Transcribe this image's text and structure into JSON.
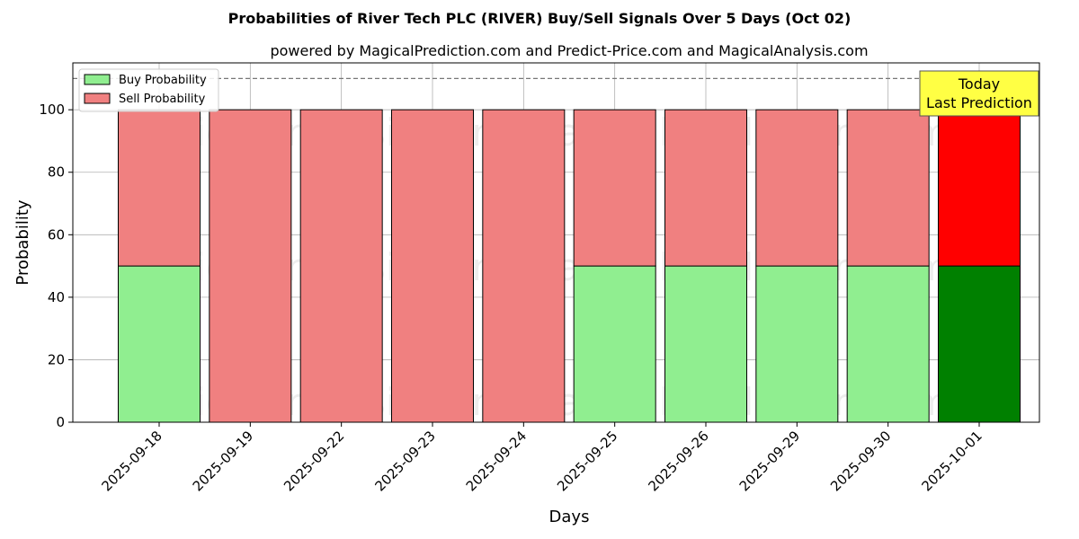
{
  "chart_data": {
    "type": "bar",
    "stacked": true,
    "title": "Probabilities of River Tech PLC (RIVER) Buy/Sell Signals Over 5 Days (Oct 02)",
    "subtitle": "powered by MagicalPrediction.com and Predict-Price.com and MagicalAnalysis.com",
    "xlabel": "Days",
    "ylabel": "Probability",
    "ylim": [
      0,
      115
    ],
    "yticks": [
      0,
      20,
      40,
      60,
      80,
      100
    ],
    "grid": true,
    "legend_position": "top-left",
    "reference_line": 110,
    "categories": [
      "2025-09-18",
      "2025-09-19",
      "2025-09-22",
      "2025-09-23",
      "2025-09-24",
      "2025-09-25",
      "2025-09-26",
      "2025-09-29",
      "2025-09-30",
      "2025-10-01"
    ],
    "series": [
      {
        "name": "Buy Probability",
        "values": [
          50,
          0,
          0,
          0,
          0,
          50,
          50,
          50,
          50,
          50
        ]
      },
      {
        "name": "Sell Probability",
        "values": [
          50,
          100,
          100,
          100,
          100,
          50,
          50,
          50,
          50,
          50
        ]
      }
    ],
    "colors": {
      "buy": "#90ee90",
      "sell": "#f08080",
      "buy_highlight": "#008000",
      "sell_highlight": "#ff0000",
      "annotation_bg": "#ffff44"
    },
    "highlight_category": "2025-10-01",
    "annotation": {
      "line1": "Today",
      "line2": "Last Prediction"
    },
    "watermarks": [
      "MagicalAnalysis.com",
      "MagicalPrediction.com"
    ]
  }
}
